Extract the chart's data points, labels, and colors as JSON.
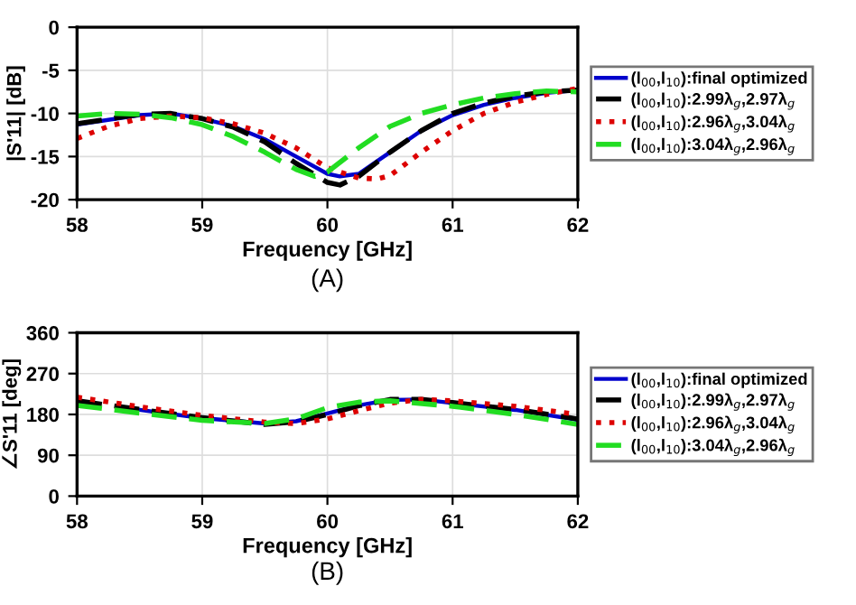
{
  "chart_data": [
    {
      "type": "line",
      "xlabel": "Frequency [GHz]",
      "ylabel": "|S'11| [dB]",
      "annotations": [
        "(A)"
      ],
      "xlim": [
        58,
        62
      ],
      "xticks": [
        58,
        59,
        60,
        61,
        62
      ],
      "ylim": [
        -20,
        0
      ],
      "yticks": [
        -20,
        -15,
        -10,
        -5,
        0
      ],
      "grid": true,
      "legend": "right",
      "series": [
        {
          "name": "(l$_{00}$,l$_{10}$):final optimized",
          "color": "#0000cc",
          "line_style": "solid",
          "x": [
            58,
            58.5,
            58.75,
            59,
            59.25,
            59.5,
            59.75,
            60,
            60.1,
            60.25,
            60.5,
            60.75,
            61,
            61.25,
            61.5,
            61.75,
            62
          ],
          "values": [
            -11.3,
            -10.2,
            -10,
            -10.6,
            -11.5,
            -13,
            -15,
            -17,
            -17.3,
            -17,
            -14.5,
            -12,
            -10.2,
            -9,
            -8.2,
            -7.6,
            -7.3
          ]
        },
        {
          "name": "(l$_{00}$,l$_{10}$):2.99λ$_{g}$,2.97λ$_{g}$",
          "color": "#000000",
          "line_style": "dashed",
          "x": [
            58,
            58.5,
            58.75,
            59,
            59.25,
            59.5,
            59.75,
            60,
            60.1,
            60.25,
            60.5,
            60.75,
            61,
            61.25,
            61.5,
            61.75,
            62
          ],
          "values": [
            -11.2,
            -10.1,
            -10,
            -10.6,
            -11.6,
            -13.3,
            -15.8,
            -18,
            -18.3,
            -17.3,
            -14.5,
            -12,
            -10,
            -8.8,
            -8,
            -7.5,
            -7.3
          ]
        },
        {
          "name": "(l$_{00}$,l$_{10}$):2.96λ$_{g}$,3.04λ$_{g}$",
          "color": "#dd0000",
          "line_style": "dotted",
          "x": [
            58,
            58.25,
            58.5,
            58.75,
            59,
            59.25,
            59.5,
            59.75,
            60,
            60.25,
            60.4,
            60.5,
            60.75,
            61,
            61.25,
            61.5,
            61.75,
            62
          ],
          "values": [
            -12.9,
            -11.5,
            -10.6,
            -10.3,
            -10.5,
            -11.2,
            -12.3,
            -14,
            -16.3,
            -17.5,
            -17.6,
            -17.2,
            -14.5,
            -12,
            -10,
            -8.7,
            -7.8,
            -7.1
          ]
        },
        {
          "name": "(l$_{00}$,l$_{10}$):3.04λ$_{g}$,2.96λ$_{g}$",
          "color": "#22dd22",
          "line_style": "dashed",
          "x": [
            58,
            58.25,
            58.5,
            58.75,
            59,
            59.25,
            59.5,
            59.75,
            59.9,
            60,
            60.25,
            60.5,
            60.75,
            61,
            61.25,
            61.5,
            61.75,
            62
          ],
          "values": [
            -10.3,
            -10,
            -10.1,
            -10.5,
            -11.3,
            -12.7,
            -14.5,
            -16.5,
            -17.3,
            -16.8,
            -14,
            -11.5,
            -10,
            -9,
            -8.2,
            -7.7,
            -7.4,
            -7.5
          ]
        }
      ]
    },
    {
      "type": "line",
      "xlabel": "Frequency [GHz]",
      "ylabel": "∠S'11 [deg]",
      "annotations": [
        "(B)"
      ],
      "xlim": [
        58,
        62
      ],
      "xticks": [
        58,
        59,
        60,
        61,
        62
      ],
      "ylim": [
        0,
        360
      ],
      "yticks": [
        0,
        90,
        180,
        270,
        360
      ],
      "grid": true,
      "legend": "right",
      "series": [
        {
          "name": "(l$_{00}$,l$_{10}$):final optimized",
          "color": "#0000cc",
          "line_style": "solid",
          "x": [
            58.5,
            59,
            59.5,
            59.75,
            60,
            60.25,
            60.5,
            60.75,
            61,
            61.5,
            62
          ],
          "values": [
            190,
            172,
            160,
            165,
            182,
            200,
            212,
            213,
            205,
            190,
            168
          ]
        },
        {
          "name": "(l$_{00}$,l$_{10}$):2.99λ$_{g}$,2.97λ$_{g}$",
          "color": "#000000",
          "line_style": "dashed",
          "x": [
            58,
            58.5,
            59,
            59.5,
            59.75,
            60,
            60.25,
            60.5,
            60.75,
            61,
            61.5,
            62
          ],
          "values": [
            210,
            191,
            173,
            158,
            164,
            180,
            199,
            213,
            213,
            206,
            191,
            170
          ]
        },
        {
          "name": "(l$_{00}$,l$_{10}$):2.96λ$_{g}$,3.04λ$_{g}$",
          "color": "#dd0000",
          "line_style": "dotted",
          "x": [
            58,
            58.5,
            59,
            59.5,
            59.75,
            60,
            60.25,
            60.5,
            60.75,
            61,
            61.5,
            62
          ],
          "values": [
            218,
            197,
            178,
            163,
            160,
            170,
            188,
            205,
            213,
            210,
            198,
            180
          ]
        },
        {
          "name": "(l$_{00}$,l$_{10}$):3.04λ$_{g}$,2.96λ$_{g}$",
          "color": "#22dd22",
          "line_style": "dashed",
          "x": [
            58,
            58.5,
            59,
            59.5,
            59.75,
            60,
            60.25,
            60.5,
            61,
            61.5,
            62
          ],
          "values": [
            200,
            183,
            167,
            160,
            170,
            195,
            207,
            210,
            198,
            180,
            158
          ]
        }
      ]
    }
  ]
}
